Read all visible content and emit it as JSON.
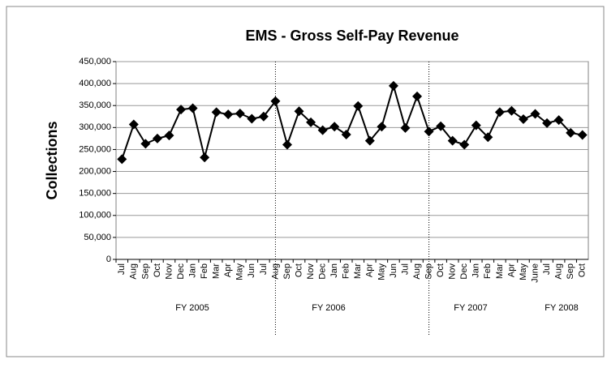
{
  "chart_data": {
    "type": "line",
    "title": "EMS - Gross Self-Pay Revenue",
    "y_label": "Collections",
    "categories": [
      "Jul",
      "Aug",
      "Sep",
      "Oct",
      "Nov",
      "Dec",
      "Jan",
      "Feb",
      "Mar",
      "Apr",
      "May",
      "Jun",
      "Jul",
      "Aug",
      "Sep",
      "Oct",
      "Nov",
      "Dec",
      "Jan",
      "Feb",
      "Mar",
      "Apr",
      "May",
      "Jun",
      "Jul",
      "Aug",
      "Sep",
      "Oct",
      "Nov",
      "Dec",
      "Jan",
      "Feb",
      "Mar",
      "Apr",
      "May",
      "June",
      "Jul",
      "Aug",
      "Sep",
      "Oct"
    ],
    "series": [
      {
        "name": "Collections",
        "color": "#000000",
        "values": [
          228000,
          307000,
          263000,
          275000,
          282000,
          341000,
          344000,
          232000,
          335000,
          330000,
          332000,
          320000,
          325000,
          360000,
          261000,
          337000,
          312000,
          294000,
          302000,
          284000,
          349000,
          270000,
          302000,
          395000,
          299000,
          371000,
          291000,
          303000,
          270000,
          261000,
          305000,
          278000,
          335000,
          338000,
          319000,
          331000,
          310000,
          317000,
          288000,
          283000
        ]
      }
    ],
    "groups": [
      "FY 2005",
      "FY 2006",
      "FY 2007",
      "FY 2008"
    ],
    "ylim": [
      0,
      450000
    ],
    "yticks": [
      0,
      {
        "value": 50000,
        "label": "50,000"
      },
      {
        "value": 100000,
        "label": "100,000"
      },
      {
        "value": 150000,
        "label": "150,000"
      },
      {
        "value": 200000,
        "label": "200,000"
      },
      {
        "value": 250000,
        "label": "250,000"
      },
      {
        "value": 300000,
        "label": "300,000"
      },
      {
        "value": 350000,
        "label": "350,000"
      },
      {
        "value": 400000,
        "label": "400,000"
      },
      {
        "value": 450000,
        "label": "450,000"
      }
    ],
    "grid": true
  }
}
